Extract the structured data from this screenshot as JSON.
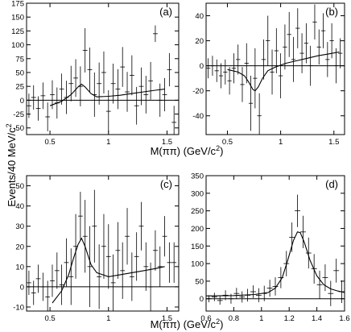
{
  "figure": {
    "ylabel_main": "Events/40 MeV/c",
    "ylabel_sup": "2",
    "xlabel_top_main": "M(ππ) (GeV/c",
    "xlabel_top_sup": "2",
    "xlabel_top_end": ")",
    "xlabel_bottom_main": "M(ππ) (GeV/c",
    "xlabel_bottom_sup": "2",
    "xlabel_bottom_end": ")"
  },
  "chart_data": [
    {
      "type": "scatter",
      "panel": "(a)",
      "xlim": [
        0.3,
        1.6
      ],
      "ylim": [
        -62,
        175
      ],
      "xticks": [
        0.5,
        1,
        1.5
      ],
      "xtick_labels": [
        "0.5",
        "1",
        "1.5"
      ],
      "yticks": [
        -50,
        -25,
        0,
        25,
        50,
        75,
        100,
        125,
        150,
        175
      ],
      "ytick_labels": [
        "-50",
        "-25",
        "0",
        "25",
        "50",
        "75",
        "100",
        "125",
        "150",
        "175"
      ],
      "points": [
        {
          "x": 0.32,
          "y": -10,
          "err": 22
        },
        {
          "x": 0.36,
          "y": 5,
          "err": 22
        },
        {
          "x": 0.4,
          "y": -15,
          "err": 22
        },
        {
          "x": 0.44,
          "y": 8,
          "err": 24
        },
        {
          "x": 0.48,
          "y": -30,
          "err": 26
        },
        {
          "x": 0.52,
          "y": 10,
          "err": 26
        },
        {
          "x": 0.56,
          "y": -5,
          "err": 28
        },
        {
          "x": 0.6,
          "y": 20,
          "err": 28
        },
        {
          "x": 0.64,
          "y": 5,
          "err": 30
        },
        {
          "x": 0.68,
          "y": 30,
          "err": 32
        },
        {
          "x": 0.72,
          "y": 40,
          "err": 34
        },
        {
          "x": 0.76,
          "y": 25,
          "err": 36
        },
        {
          "x": 0.8,
          "y": 90,
          "err": 40
        },
        {
          "x": 0.84,
          "y": 55,
          "err": 40
        },
        {
          "x": 0.88,
          "y": 10,
          "err": 40
        },
        {
          "x": 0.92,
          "y": 30,
          "err": 38
        },
        {
          "x": 0.96,
          "y": 50,
          "err": 38
        },
        {
          "x": 1.0,
          "y": -20,
          "err": 38
        },
        {
          "x": 1.04,
          "y": 30,
          "err": 36
        },
        {
          "x": 1.08,
          "y": 20,
          "err": 36
        },
        {
          "x": 1.12,
          "y": 60,
          "err": 36
        },
        {
          "x": 1.16,
          "y": 15,
          "err": 36
        },
        {
          "x": 1.2,
          "y": 45,
          "err": 36
        },
        {
          "x": 1.24,
          "y": -10,
          "err": 34
        },
        {
          "x": 1.28,
          "y": 25,
          "err": 34
        },
        {
          "x": 1.32,
          "y": 10,
          "err": 34
        },
        {
          "x": 1.36,
          "y": 35,
          "err": 34
        },
        {
          "x": 1.4,
          "y": 120,
          "err": 15
        },
        {
          "x": 1.44,
          "y": 0,
          "err": 30
        },
        {
          "x": 1.48,
          "y": 10,
          "err": 30
        },
        {
          "x": 1.52,
          "y": 55,
          "err": 30
        },
        {
          "x": 1.56,
          "y": -40,
          "err": 30
        }
      ],
      "curve": [
        [
          0.5,
          -10
        ],
        [
          0.6,
          -2
        ],
        [
          0.68,
          10
        ],
        [
          0.74,
          24
        ],
        [
          0.77,
          29
        ],
        [
          0.8,
          24
        ],
        [
          0.85,
          12
        ],
        [
          0.9,
          6
        ],
        [
          1.0,
          7
        ],
        [
          1.1,
          9
        ],
        [
          1.2,
          12
        ],
        [
          1.3,
          15
        ],
        [
          1.4,
          18
        ],
        [
          1.48,
          20
        ]
      ]
    },
    {
      "type": "scatter",
      "panel": "(b)",
      "xlim": [
        0.3,
        1.6
      ],
      "ylim": [
        -55,
        50
      ],
      "xticks": [
        0.5,
        1,
        1.5
      ],
      "xtick_labels": [
        "0.5",
        "1",
        "1.5"
      ],
      "yticks": [
        -40,
        -20,
        0,
        20,
        40
      ],
      "ytick_labels": [
        "-40",
        "-20",
        "0",
        "20",
        "40"
      ],
      "points": [
        {
          "x": 0.32,
          "y": -2,
          "err": 8
        },
        {
          "x": 0.36,
          "y": 0,
          "err": 8
        },
        {
          "x": 0.4,
          "y": -4,
          "err": 9
        },
        {
          "x": 0.44,
          "y": -8,
          "err": 10
        },
        {
          "x": 0.48,
          "y": -5,
          "err": 10
        },
        {
          "x": 0.52,
          "y": -12,
          "err": 11
        },
        {
          "x": 0.56,
          "y": -2,
          "err": 12
        },
        {
          "x": 0.6,
          "y": 5,
          "err": 12
        },
        {
          "x": 0.64,
          "y": -15,
          "err": 14
        },
        {
          "x": 0.68,
          "y": 2,
          "err": 16
        },
        {
          "x": 0.72,
          "y": -30,
          "err": 22
        },
        {
          "x": 0.76,
          "y": -10,
          "err": 24
        },
        {
          "x": 0.8,
          "y": -40,
          "err": 18
        },
        {
          "x": 0.84,
          "y": 5,
          "err": 16
        },
        {
          "x": 0.88,
          "y": 20,
          "err": 20
        },
        {
          "x": 0.92,
          "y": -5,
          "err": 18
        },
        {
          "x": 0.96,
          "y": 12,
          "err": 18
        },
        {
          "x": 1.0,
          "y": -8,
          "err": 18
        },
        {
          "x": 1.04,
          "y": 15,
          "err": 18
        },
        {
          "x": 1.08,
          "y": 25,
          "err": 18
        },
        {
          "x": 1.12,
          "y": 5,
          "err": 18
        },
        {
          "x": 1.16,
          "y": 30,
          "err": 16
        },
        {
          "x": 1.2,
          "y": 10,
          "err": 16
        },
        {
          "x": 1.24,
          "y": 18,
          "err": 16
        },
        {
          "x": 1.28,
          "y": 0,
          "err": 16
        },
        {
          "x": 1.32,
          "y": 35,
          "err": 14
        },
        {
          "x": 1.36,
          "y": 15,
          "err": 14
        },
        {
          "x": 1.4,
          "y": 28,
          "err": 14
        },
        {
          "x": 1.44,
          "y": 5,
          "err": 14
        },
        {
          "x": 1.48,
          "y": 20,
          "err": 14
        },
        {
          "x": 1.52,
          "y": 0,
          "err": 14
        },
        {
          "x": 1.56,
          "y": 10,
          "err": 12
        }
      ],
      "curve": [
        [
          0.5,
          -3
        ],
        [
          0.6,
          -5
        ],
        [
          0.66,
          -8
        ],
        [
          0.7,
          -13
        ],
        [
          0.74,
          -19
        ],
        [
          0.76,
          -20
        ],
        [
          0.79,
          -17
        ],
        [
          0.83,
          -10
        ],
        [
          0.88,
          -4
        ],
        [
          0.95,
          -1
        ],
        [
          1.05,
          2
        ],
        [
          1.15,
          4
        ],
        [
          1.25,
          6
        ],
        [
          1.35,
          8
        ],
        [
          1.45,
          9.5
        ],
        [
          1.55,
          11
        ]
      ]
    },
    {
      "type": "scatter",
      "panel": "(c)",
      "xlim": [
        0.3,
        1.6
      ],
      "ylim": [
        -12,
        55
      ],
      "xticks": [
        0.5,
        1,
        1.5
      ],
      "xtick_labels": [
        "0.5",
        "1",
        "1.5"
      ],
      "yticks": [
        -10,
        0,
        10,
        20,
        30,
        40,
        50
      ],
      "ytick_labels": [
        "-10",
        "0",
        "10",
        "20",
        "30",
        "40",
        "50"
      ],
      "points": [
        {
          "x": 0.32,
          "y": 2,
          "err": 6
        },
        {
          "x": 0.36,
          "y": -3,
          "err": 6
        },
        {
          "x": 0.4,
          "y": 4,
          "err": 7
        },
        {
          "x": 0.44,
          "y": 0,
          "err": 7
        },
        {
          "x": 0.48,
          "y": -5,
          "err": 8
        },
        {
          "x": 0.52,
          "y": 3,
          "err": 8
        },
        {
          "x": 0.56,
          "y": 8,
          "err": 9
        },
        {
          "x": 0.6,
          "y": 1,
          "err": 10
        },
        {
          "x": 0.64,
          "y": 12,
          "err": 12
        },
        {
          "x": 0.68,
          "y": 5,
          "err": 14
        },
        {
          "x": 0.72,
          "y": 20,
          "err": 16
        },
        {
          "x": 0.76,
          "y": 35,
          "err": 12
        },
        {
          "x": 0.8,
          "y": 25,
          "err": 18
        },
        {
          "x": 0.84,
          "y": 10,
          "err": 20
        },
        {
          "x": 0.88,
          "y": 30,
          "err": 18
        },
        {
          "x": 0.92,
          "y": 5,
          "err": 16
        },
        {
          "x": 0.96,
          "y": 20,
          "err": 16
        },
        {
          "x": 1.0,
          "y": 15,
          "err": 16
        },
        {
          "x": 1.04,
          "y": 2,
          "err": 14
        },
        {
          "x": 1.08,
          "y": 18,
          "err": 14
        },
        {
          "x": 1.12,
          "y": 8,
          "err": 14
        },
        {
          "x": 1.16,
          "y": 25,
          "err": 14
        },
        {
          "x": 1.2,
          "y": 5,
          "err": 12
        },
        {
          "x": 1.24,
          "y": 15,
          "err": 12
        },
        {
          "x": 1.28,
          "y": 30,
          "err": 12
        },
        {
          "x": 1.32,
          "y": 10,
          "err": 12
        },
        {
          "x": 1.36,
          "y": 0,
          "err": 12
        },
        {
          "x": 1.4,
          "y": 18,
          "err": 10
        },
        {
          "x": 1.44,
          "y": 10,
          "err": 10
        },
        {
          "x": 1.48,
          "y": 25,
          "err": 10
        },
        {
          "x": 1.52,
          "y": 12,
          "err": 10
        },
        {
          "x": 1.56,
          "y": 12,
          "err": 10
        }
      ],
      "curve": [
        [
          0.52,
          -8
        ],
        [
          0.6,
          -2
        ],
        [
          0.66,
          6
        ],
        [
          0.7,
          14
        ],
        [
          0.74,
          21
        ],
        [
          0.77,
          24
        ],
        [
          0.8,
          20
        ],
        [
          0.85,
          11
        ],
        [
          0.9,
          7
        ],
        [
          1.0,
          5
        ],
        [
          1.1,
          6
        ],
        [
          1.2,
          7
        ],
        [
          1.3,
          8
        ],
        [
          1.4,
          9
        ],
        [
          1.48,
          10
        ]
      ]
    },
    {
      "type": "scatter",
      "panel": "(d)",
      "xlim": [
        0.6,
        1.6
      ],
      "ylim": [
        -35,
        350
      ],
      "xticks": [
        0.6,
        0.8,
        1.0,
        1.2,
        1.4,
        1.6
      ],
      "xtick_labels": [
        "0.6",
        "0.8",
        "1",
        "1.2",
        "1.4",
        "1.6"
      ],
      "yticks": [
        0,
        50,
        100,
        150,
        200,
        250,
        300,
        350
      ],
      "ytick_labels": [
        "0",
        "50",
        "100",
        "150",
        "200",
        "250",
        "300",
        "350"
      ],
      "points": [
        {
          "x": 0.62,
          "y": 0,
          "err": 10
        },
        {
          "x": 0.66,
          "y": 5,
          "err": 12
        },
        {
          "x": 0.7,
          "y": -5,
          "err": 12
        },
        {
          "x": 0.74,
          "y": 10,
          "err": 14
        },
        {
          "x": 0.78,
          "y": 0,
          "err": 14
        },
        {
          "x": 0.82,
          "y": 15,
          "err": 16
        },
        {
          "x": 0.86,
          "y": 5,
          "err": 16
        },
        {
          "x": 0.9,
          "y": 10,
          "err": 18
        },
        {
          "x": 0.94,
          "y": 20,
          "err": 18
        },
        {
          "x": 0.98,
          "y": 10,
          "err": 20
        },
        {
          "x": 1.02,
          "y": 15,
          "err": 22
        },
        {
          "x": 1.06,
          "y": 30,
          "err": 24
        },
        {
          "x": 1.1,
          "y": 35,
          "err": 26
        },
        {
          "x": 1.14,
          "y": 60,
          "err": 30
        },
        {
          "x": 1.18,
          "y": 100,
          "err": 36
        },
        {
          "x": 1.22,
          "y": 175,
          "err": 42
        },
        {
          "x": 1.26,
          "y": 250,
          "err": 46
        },
        {
          "x": 1.3,
          "y": 190,
          "err": 46
        },
        {
          "x": 1.34,
          "y": 130,
          "err": 44
        },
        {
          "x": 1.38,
          "y": 85,
          "err": 42
        },
        {
          "x": 1.42,
          "y": 40,
          "err": 40
        },
        {
          "x": 1.46,
          "y": 60,
          "err": 38
        },
        {
          "x": 1.5,
          "y": 15,
          "err": 36
        },
        {
          "x": 1.54,
          "y": 80,
          "err": 34
        },
        {
          "x": 1.58,
          "y": 20,
          "err": 32
        }
      ],
      "curve": [
        [
          0.6,
          8
        ],
        [
          0.8,
          9
        ],
        [
          0.95,
          12
        ],
        [
          1.05,
          18
        ],
        [
          1.1,
          30
        ],
        [
          1.15,
          60
        ],
        [
          1.19,
          110
        ],
        [
          1.23,
          165
        ],
        [
          1.26,
          190
        ],
        [
          1.28,
          188
        ],
        [
          1.31,
          160
        ],
        [
          1.35,
          110
        ],
        [
          1.4,
          65
        ],
        [
          1.45,
          40
        ],
        [
          1.5,
          28
        ],
        [
          1.55,
          22
        ],
        [
          1.6,
          18
        ]
      ]
    }
  ]
}
